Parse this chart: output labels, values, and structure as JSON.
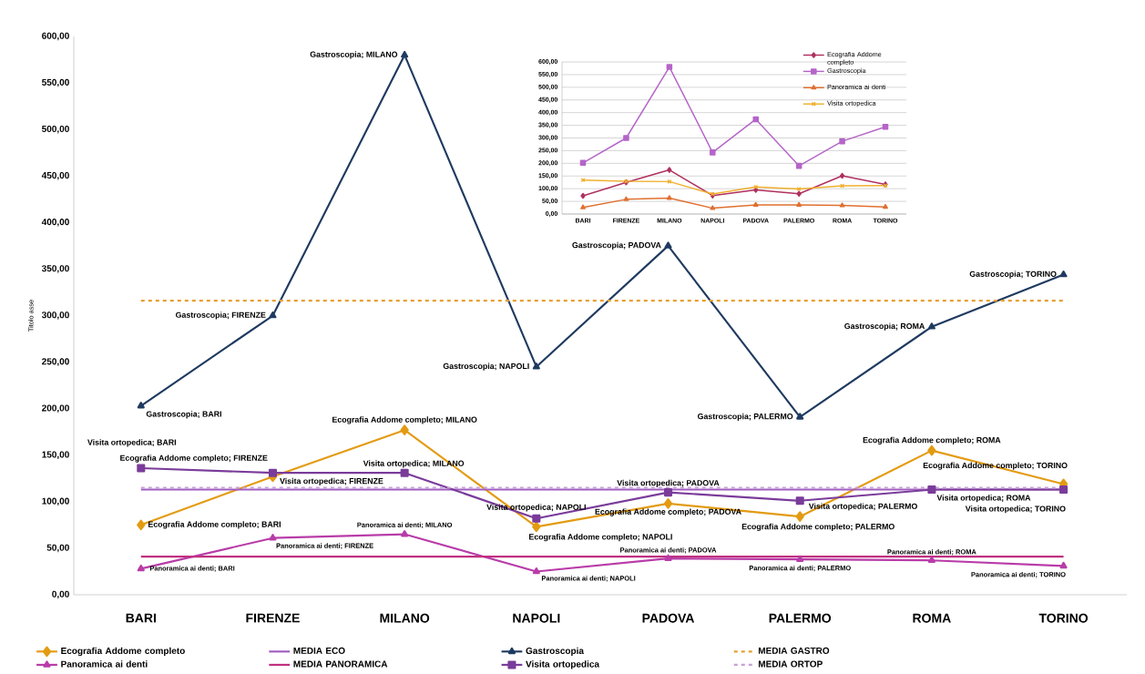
{
  "chart_data": [
    {
      "type": "line",
      "ylabel": "Titolo asse",
      "legend": "bottom",
      "categories": [
        "BARI",
        "FIRENZE",
        "MILANO",
        "NAPOLI",
        "PADOVA",
        "PALERMO",
        "ROMA",
        "TORINO"
      ],
      "ylim": [
        0,
        600
      ],
      "yticks": [
        {
          "value": 0,
          "label": "0,00"
        },
        {
          "value": 50,
          "label": "50,00"
        },
        {
          "value": 100,
          "label": "100,00"
        },
        {
          "value": 150,
          "label": "150,00"
        },
        {
          "value": 200,
          "label": "200,00"
        },
        {
          "value": 250,
          "label": "250,00"
        },
        {
          "value": 300,
          "label": "300,00"
        },
        {
          "value": 350,
          "label": "350,00"
        },
        {
          "value": 400,
          "label": "400,00"
        },
        {
          "value": 450,
          "label": "450,00"
        },
        {
          "value": 500,
          "label": "500,00"
        },
        {
          "value": 550,
          "label": "550,00"
        },
        {
          "value": 600,
          "label": "600,00"
        }
      ],
      "series": [
        {
          "name": "Ecografia Addome completo",
          "type": "line",
          "color": "#e39b12",
          "marker": "diamond",
          "line_style": "solid",
          "values": [
            75,
            127,
            177,
            73,
            98,
            84,
            155,
            119
          ]
        },
        {
          "name": "MEDIA ECO",
          "type": "line",
          "color": "#a05cc0",
          "marker": "none",
          "line_style": "solid",
          "values": [
            113,
            113,
            113,
            113,
            113,
            113,
            113,
            113
          ]
        },
        {
          "name": "Gastroscopia",
          "type": "line",
          "color": "#1f3a60",
          "marker": "triangle",
          "line_style": "solid",
          "values": [
            203,
            300,
            580,
            245,
            375,
            191,
            288,
            344
          ]
        },
        {
          "name": "MEDIA GASTRO",
          "type": "line",
          "color": "#e8a030",
          "marker": "none",
          "line_style": "dashed",
          "values": [
            316,
            316,
            316,
            316,
            316,
            316,
            316,
            316
          ]
        },
        {
          "name": "Panoramica ai denti",
          "type": "line",
          "color": "#b83ca8",
          "marker": "triangle",
          "line_style": "solid",
          "values": [
            28,
            61,
            65,
            25,
            39,
            38,
            37,
            31
          ]
        },
        {
          "name": "MEDIA PANORAMICA",
          "type": "line",
          "color": "#c03080",
          "marker": "none",
          "line_style": "solid",
          "values": [
            41,
            41,
            41,
            41,
            41,
            41,
            41,
            41
          ]
        },
        {
          "name": "Visita ortopedica",
          "type": "line",
          "color": "#7a3c9a",
          "marker": "square",
          "line_style": "solid",
          "values": [
            136,
            131,
            131,
            82,
            110,
            101,
            113,
            113
          ]
        },
        {
          "name": "MEDIA ORTOP",
          "type": "line",
          "color": "#c8a0d8",
          "marker": "none",
          "line_style": "dashed",
          "values": [
            115,
            115,
            115,
            115,
            115,
            115,
            115,
            115
          ]
        }
      ],
      "annotations": [
        {
          "text": "Gastroscopia; BARI",
          "x": "BARI",
          "y": 203
        },
        {
          "text": "Gastroscopia; FIRENZE",
          "x": "FIRENZE",
          "y": 300
        },
        {
          "text": "Gastroscopia; MILANO",
          "x": "MILANO",
          "y": 580
        },
        {
          "text": "Gastroscopia; NAPOLI",
          "x": "NAPOLI",
          "y": 245
        },
        {
          "text": "Gastroscopia; PADOVA",
          "x": "PADOVA",
          "y": 375
        },
        {
          "text": "Gastroscopia; PALERMO",
          "x": "PALERMO",
          "y": 191
        },
        {
          "text": "Gastroscopia; ROMA",
          "x": "ROMA",
          "y": 288
        },
        {
          "text": "Gastroscopia; TORINO",
          "x": "TORINO",
          "y": 344
        },
        {
          "text": "Ecografia Addome completo; BARI",
          "x": "BARI",
          "y": 75
        },
        {
          "text": "Ecografia Addome completo; FIRENZE",
          "x": "FIRENZE",
          "y": 127
        },
        {
          "text": "Ecografia Addome completo; MILANO",
          "x": "MILANO",
          "y": 177
        },
        {
          "text": "Ecografia Addome completo; NAPOLI",
          "x": "NAPOLI",
          "y": 73
        },
        {
          "text": "Ecografia Addome completo; PADOVA",
          "x": "PADOVA",
          "y": 98
        },
        {
          "text": "Ecografia Addome completo; PALERMO",
          "x": "PALERMO",
          "y": 84
        },
        {
          "text": "Ecografia Addome completo; ROMA",
          "x": "ROMA",
          "y": 155
        },
        {
          "text": "Ecografia Addome completo; TORINO",
          "x": "TORINO",
          "y": 119
        },
        {
          "text": "Visita ortopedica; BARI",
          "x": "BARI",
          "y": 136
        },
        {
          "text": "Visita ortopedica; FIRENZE",
          "x": "FIRENZE",
          "y": 131
        },
        {
          "text": "Visita ortopedica; MILANO",
          "x": "MILANO",
          "y": 131
        },
        {
          "text": "Visita ortopedica; NAPOLI",
          "x": "NAPOLI",
          "y": 82
        },
        {
          "text": "Visita ortopedica; PADOVA",
          "x": "PADOVA",
          "y": 110
        },
        {
          "text": "Visita ortopedica; PALERMO",
          "x": "PALERMO",
          "y": 101
        },
        {
          "text": "Visita ortopedica; ROMA",
          "x": "ROMA",
          "y": 113
        },
        {
          "text": "Visita ortopedica; TORINO",
          "x": "TORINO",
          "y": 113
        },
        {
          "text": "Panoramica ai denti; BARI",
          "x": "BARI",
          "y": 28
        },
        {
          "text": "Panoramica ai denti; FIRENZE",
          "x": "FIRENZE",
          "y": 61
        },
        {
          "text": "Panoramica ai denti; MILANO",
          "x": "MILANO",
          "y": 65
        },
        {
          "text": "Panoramica ai denti; NAPOLI",
          "x": "NAPOLI",
          "y": 25
        },
        {
          "text": "Panoramica ai denti; PADOVA",
          "x": "PADOVA",
          "y": 39
        },
        {
          "text": "Panoramica ai denti; PALERMO",
          "x": "PALERMO",
          "y": 38
        },
        {
          "text": "Panoramica ai denti; ROMA",
          "x": "ROMA",
          "y": 37
        },
        {
          "text": "Panoramica ai denti; TORINO",
          "x": "TORINO",
          "y": 31
        }
      ]
    },
    {
      "type": "line",
      "legend": "top right",
      "grid": "y",
      "categories": [
        "BARI",
        "FIRENZE",
        "MILANO",
        "NAPOLI",
        "PADOVA",
        "PALERMO",
        "ROMA",
        "TORINO"
      ],
      "ylim": [
        0,
        600
      ],
      "yticks": [
        {
          "value": 0,
          "label": "0,00"
        },
        {
          "value": 50,
          "label": "50,00"
        },
        {
          "value": 100,
          "label": "100,00"
        },
        {
          "value": 150,
          "label": "150,00"
        },
        {
          "value": 200,
          "label": "200,00"
        },
        {
          "value": 250,
          "label": "250,00"
        },
        {
          "value": 300,
          "label": "300,00"
        },
        {
          "value": 350,
          "label": "350,00"
        },
        {
          "value": 400,
          "label": "400,00"
        },
        {
          "value": 450,
          "label": "450,00"
        },
        {
          "value": 500,
          "label": "500,00"
        },
        {
          "value": 550,
          "label": "550,00"
        },
        {
          "value": 600,
          "label": "600,00"
        }
      ],
      "series": [
        {
          "name": "Ecografia Addome completo",
          "color": "#b03060",
          "marker": "diamond",
          "values": [
            72,
            125,
            174,
            73,
            95,
            80,
            151,
            117
          ]
        },
        {
          "name": "Gastroscopia",
          "color": "#b565c8",
          "marker": "square",
          "values": [
            202,
            300,
            580,
            243,
            374,
            190,
            287,
            344
          ]
        },
        {
          "name": "Panoramica ai denti",
          "color": "#e07030",
          "marker": "triangle",
          "values": [
            26,
            58,
            63,
            23,
            36,
            36,
            34,
            28
          ]
        },
        {
          "name": "Visita ortopedica",
          "color": "#f0b030",
          "marker": "cross",
          "values": [
            134,
            129,
            128,
            79,
            107,
            99,
            111,
            112
          ]
        }
      ]
    }
  ]
}
